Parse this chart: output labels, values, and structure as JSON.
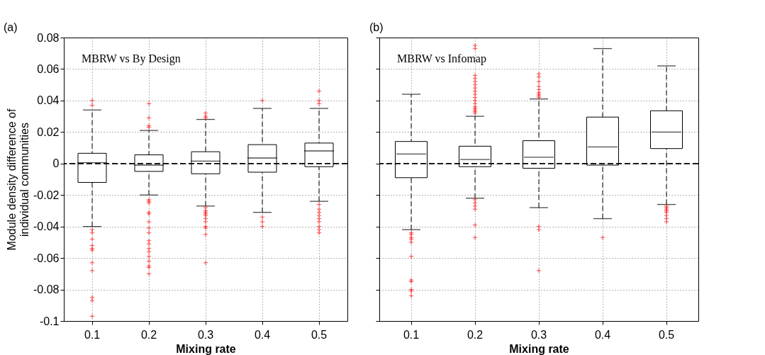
{
  "chart_data": [
    {
      "type": "box",
      "annotations": [
        "(a)",
        "MBRW vs By Design"
      ],
      "xlabel": "Mixing rate",
      "ylabel": "Module density difference of\nindividual communities",
      "categories": [
        "0.1",
        "0.2",
        "0.3",
        "0.4",
        "0.5"
      ],
      "ylim": [
        -0.1,
        0.08
      ],
      "yticks": [
        -0.1,
        -0.08,
        -0.06,
        -0.04,
        -0.02,
        0,
        0.02,
        0.04,
        0.06,
        0.08
      ],
      "grid": true,
      "ref_lines": [
        {
          "axis": "y",
          "value": 0,
          "line_style": "dashed",
          "color": "#000000"
        }
      ],
      "series": [
        {
          "color": "#000000",
          "boxes": [
            {
              "low": -0.04,
              "q1": -0.012,
              "median": 0.0005,
              "q3": 0.0065,
              "high": 0.034,
              "outliers": [
                0.04,
                0.037,
                -0.042,
                -0.044,
                -0.048,
                -0.052,
                -0.054,
                -0.055,
                -0.063,
                -0.068,
                -0.085,
                -0.087,
                -0.097
              ]
            },
            {
              "low": -0.02,
              "q1": -0.005,
              "median": -0.001,
              "q3": 0.0055,
              "high": 0.021,
              "outliers": [
                0.038,
                0.029,
                0.024,
                0.023,
                -0.023,
                -0.024,
                -0.025,
                -0.031,
                -0.032,
                -0.037,
                -0.041,
                -0.044,
                -0.049,
                -0.051,
                -0.054,
                -0.056,
                -0.059,
                -0.062,
                -0.065,
                -0.066,
                -0.07
              ]
            },
            {
              "low": -0.027,
              "q1": -0.0065,
              "median": 0.0015,
              "q3": 0.0075,
              "high": 0.028,
              "outliers": [
                0.032,
                0.03,
                0.029,
                -0.028,
                -0.03,
                -0.031,
                -0.032,
                -0.033,
                -0.035,
                -0.037,
                -0.04,
                -0.041,
                -0.045,
                -0.063
              ]
            },
            {
              "low": -0.031,
              "q1": -0.0055,
              "median": 0.0035,
              "q3": 0.012,
              "high": 0.035,
              "outliers": [
                0.04,
                -0.034,
                -0.037,
                -0.04
              ]
            },
            {
              "low": -0.024,
              "q1": -0.002,
              "median": 0.008,
              "q3": 0.013,
              "high": 0.035,
              "outliers": [
                0.046,
                0.04,
                0.038,
                -0.026,
                -0.029,
                -0.031,
                -0.033,
                -0.035,
                -0.037,
                -0.04,
                -0.042,
                -0.044
              ]
            }
          ]
        }
      ]
    },
    {
      "type": "box",
      "annotations": [
        "(b)",
        "MBRW vs Infomap"
      ],
      "xlabel": "Mixing rate",
      "categories": [
        "0.1",
        "0.2",
        "0.3",
        "0.4",
        "0.5"
      ],
      "ylim": [
        -0.1,
        0.08
      ],
      "yticks": [
        -0.1,
        -0.08,
        -0.06,
        -0.04,
        -0.02,
        0,
        0.02,
        0.04,
        0.06,
        0.08
      ],
      "tick_labels": "x",
      "grid": true,
      "ref_lines": [
        {
          "axis": "y",
          "value": 0,
          "line_style": "dashed",
          "color": "#000000"
        }
      ],
      "series": [
        {
          "color": "#000000",
          "boxes": [
            {
              "low": -0.042,
              "q1": -0.009,
              "median": 0.006,
              "q3": 0.014,
              "high": 0.044,
              "outliers": [
                -0.044,
                -0.045,
                -0.047,
                -0.048,
                -0.05,
                -0.059,
                -0.074,
                -0.075,
                -0.08,
                -0.081,
                -0.084
              ]
            },
            {
              "low": -0.022,
              "q1": -0.002,
              "median": 0.0025,
              "q3": 0.011,
              "high": 0.03,
              "outliers": [
                0.032,
                0.033,
                0.034,
                0.035,
                0.036,
                0.038,
                0.04,
                0.042,
                0.044,
                0.046,
                0.048,
                0.05,
                0.052,
                0.054,
                0.056,
                0.073,
                0.075,
                -0.023,
                -0.025,
                -0.027,
                -0.029,
                -0.039,
                -0.047
              ]
            },
            {
              "low": -0.028,
              "q1": -0.003,
              "median": 0.004,
              "q3": 0.0145,
              "high": 0.041,
              "outliers": [
                0.042,
                0.043,
                0.044,
                0.045,
                0.047,
                0.049,
                0.052,
                0.055,
                0.057,
                -0.04,
                -0.042,
                -0.068
              ]
            },
            {
              "low": -0.035,
              "q1": -0.001,
              "median": 0.0105,
              "q3": 0.0295,
              "high": 0.073,
              "outliers": [
                -0.047
              ]
            },
            {
              "low": -0.026,
              "q1": 0.0095,
              "median": 0.02,
              "q3": 0.0335,
              "high": 0.062,
              "outliers": [
                -0.027,
                -0.028,
                -0.029,
                -0.03,
                -0.031,
                -0.033,
                -0.035,
                -0.037
              ]
            }
          ]
        }
      ]
    }
  ]
}
